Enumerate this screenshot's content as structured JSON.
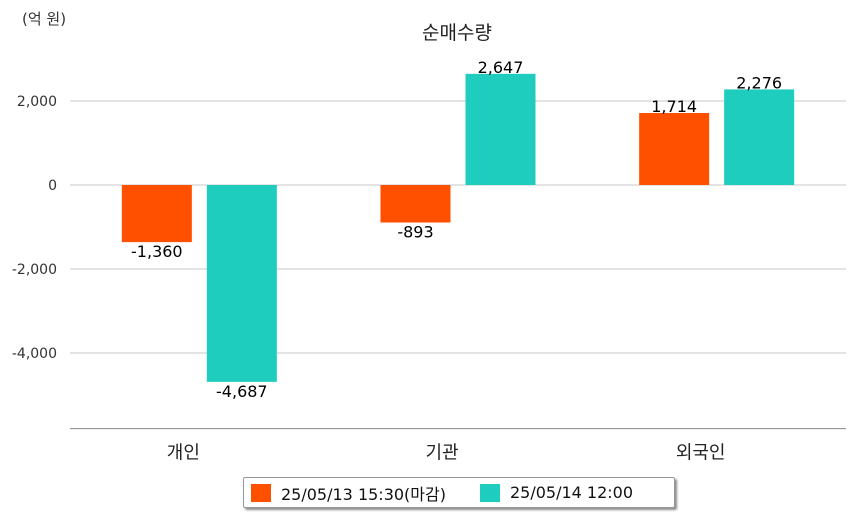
{
  "unit_label": "(억 원)",
  "chart_data": {
    "type": "bar",
    "title": "순매수량",
    "categories": [
      "개인",
      "기관",
      "외국인"
    ],
    "series": [
      {
        "name": "25/05/13 15:30(마감)",
        "color": "#ff5000",
        "values": [
          -1360,
          -893,
          1714
        ],
        "labels": [
          "-1,360",
          "-893",
          "1,714"
        ]
      },
      {
        "name": "25/05/14 12:00",
        "color": "#1ecdbd",
        "values": [
          -4687,
          2647,
          2276
        ],
        "labels": [
          "-4,687",
          "2,647",
          "2,276"
        ]
      }
    ],
    "yticks": [
      2000,
      0,
      -2000,
      -4000
    ],
    "ytick_labels": [
      "2,000",
      "0",
      "-2,000",
      "-4,000"
    ],
    "ylim": [
      -5800,
      3400
    ],
    "grid": true,
    "legend_position": "bottom"
  }
}
